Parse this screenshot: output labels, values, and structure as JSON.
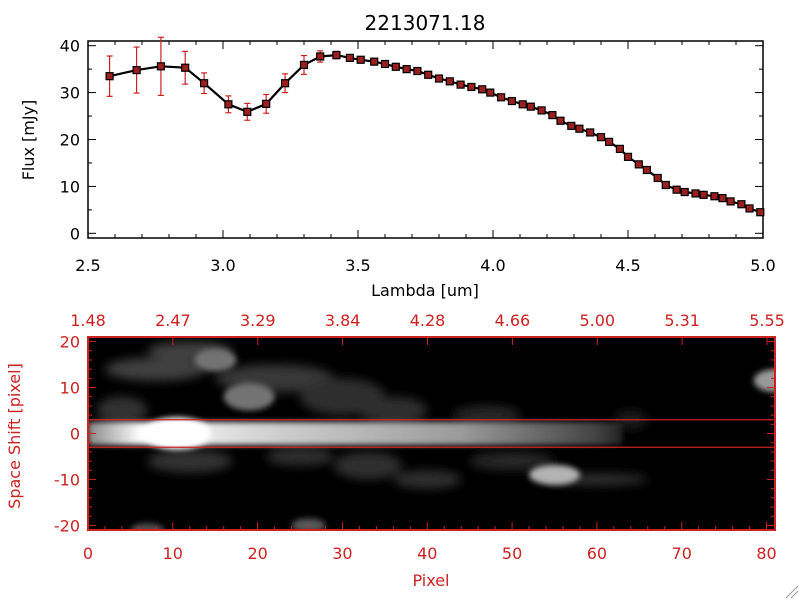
{
  "colors": {
    "axis_black": "#000000",
    "accent_red": "#cc2222",
    "background": "#ffffff",
    "image_bg": "#000000"
  },
  "chart_data": [
    {
      "type": "line",
      "title": "2213071.18",
      "xlabel": "Lambda [um]",
      "ylabel": "Flux [mJy]",
      "xlim": [
        2.5,
        5.0
      ],
      "ylim": [
        -1,
        41
      ],
      "x_ticks": [
        "2.5",
        "3.0",
        "3.5",
        "4.0",
        "4.5",
        "5.0"
      ],
      "y_ticks": [
        "0",
        "10",
        "20",
        "30",
        "40"
      ],
      "series": [
        {
          "x": [
            2.58,
            2.68,
            2.77,
            2.86,
            2.93,
            3.02,
            3.09,
            3.16,
            3.23,
            3.3,
            3.36,
            3.42,
            3.47,
            3.51,
            3.56,
            3.6,
            3.64,
            3.68,
            3.72,
            3.76,
            3.8,
            3.84,
            3.88,
            3.92,
            3.96,
            3.99,
            4.03,
            4.07,
            4.11,
            4.14,
            4.18,
            4.22,
            4.25,
            4.29,
            4.32,
            4.36,
            4.4,
            4.43,
            4.47,
            4.5,
            4.54,
            4.57,
            4.61,
            4.64,
            4.68,
            4.71,
            4.75,
            4.78,
            4.82,
            4.85,
            4.88,
            4.92,
            4.95,
            4.99
          ],
          "y": [
            33.5,
            34.8,
            35.6,
            35.3,
            32.0,
            27.5,
            25.9,
            27.6,
            32.0,
            35.9,
            37.7,
            38.0,
            37.4,
            37.0,
            36.6,
            36.1,
            35.5,
            35.0,
            34.6,
            33.8,
            33.0,
            32.4,
            31.7,
            31.2,
            30.7,
            30.0,
            29.0,
            28.2,
            27.5,
            27.0,
            26.2,
            25.2,
            24.0,
            22.9,
            22.3,
            21.5,
            20.5,
            19.5,
            18.0,
            16.3,
            14.7,
            13.5,
            11.8,
            10.3,
            9.3,
            8.8,
            8.5,
            8.2,
            7.9,
            7.5,
            6.8,
            6.2,
            5.3,
            4.5
          ],
          "yerr": [
            4.3,
            4.9,
            6.2,
            3.5,
            2.2,
            1.8,
            1.8,
            2.0,
            2.0,
            2.0,
            1.2,
            0.8,
            0.5,
            0.5,
            0.5,
            0.5,
            0.5,
            0.5,
            0.5,
            0.5,
            0.5,
            0.5,
            0.5,
            0.5,
            0.5,
            0.5,
            0.5,
            0.5,
            0.5,
            0.5,
            0.5,
            0.5,
            0.5,
            0.5,
            0.5,
            0.5,
            0.5,
            0.5,
            0.5,
            0.5,
            0.5,
            0.5,
            0.5,
            0.5,
            0.5,
            0.5,
            0.5,
            0.5,
            0.5,
            0.5,
            0.5,
            0.5,
            0.5,
            0.5
          ]
        }
      ]
    },
    {
      "type": "heatmap",
      "xlabel": "Pixel",
      "ylabel": "Space Shift [pixel]",
      "xlim": [
        0,
        81
      ],
      "ylim": [
        -21,
        21
      ],
      "x_ticks": [
        "0",
        "10",
        "20",
        "30",
        "40",
        "50",
        "60",
        "70",
        "80"
      ],
      "y_ticks": [
        "-20",
        "-10",
        "0",
        "10",
        "20"
      ],
      "top_axis_ticks": [
        "1.48",
        "2.47",
        "3.29",
        "3.84",
        "4.28",
        "4.66",
        "5.00",
        "5.31",
        "5.55"
      ],
      "extraction_window": [
        -3,
        3
      ],
      "blobs": [
        {
          "x": 15,
          "y": 16,
          "sx": 2.5,
          "sy": 2.5,
          "a": 0.45
        },
        {
          "x": 19,
          "y": 8,
          "sx": 3,
          "sy": 3,
          "a": 0.45
        },
        {
          "x": 55,
          "y": -9,
          "sx": 3,
          "sy": 2.2,
          "a": 0.7
        },
        {
          "x": 81,
          "y": 11.5,
          "sx": 2.5,
          "sy": 2.5,
          "a": 0.6
        },
        {
          "x": 26,
          "y": -20,
          "sx": 2,
          "sy": 1.5,
          "a": 0.35
        },
        {
          "x": 7,
          "y": -21,
          "sx": 2,
          "sy": 1.5,
          "a": 0.3
        }
      ]
    }
  ]
}
